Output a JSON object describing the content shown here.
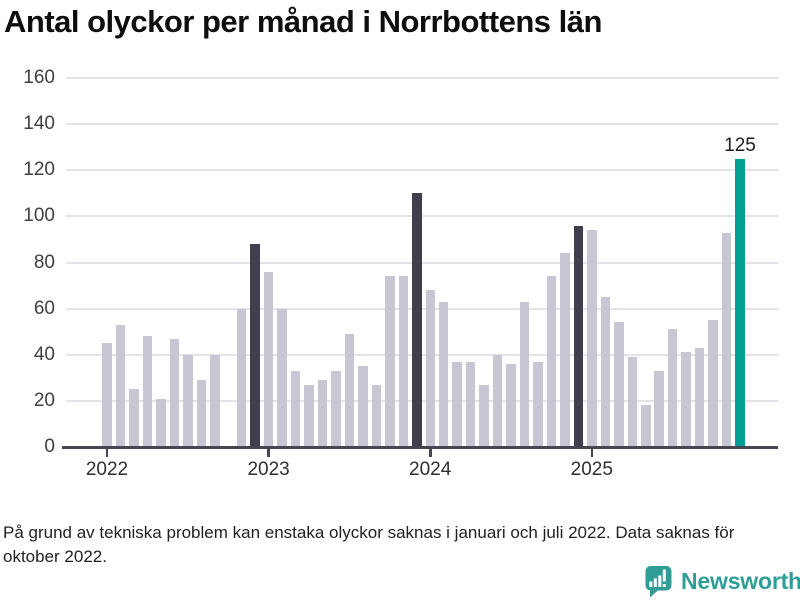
{
  "title": "Antal olyckor per månad i Norrbottens län",
  "footnote": "På grund av tekniska problem kan enstaka olyckor saknas i januari och juli 2022. Data saknas för oktober 2022.",
  "branding": {
    "logo_text": "Newsworthy"
  },
  "colors": {
    "bar_default": "#c8c6d2",
    "bar_highlight_dark": "#413f4e",
    "bar_highlight_teal": "#00a096",
    "gridline": "#e5e3e8",
    "axis": "#47454f",
    "logo_teal": "#2f9e97"
  },
  "chart_data": {
    "type": "bar",
    "title": "Antal olyckor per månad i Norrbottens län",
    "xlabel": "",
    "ylabel": "",
    "ylim": [
      0,
      160
    ],
    "yticks": [
      0,
      20,
      40,
      60,
      80,
      100,
      120,
      140,
      160
    ],
    "grid": "horizontal",
    "legend_position": "none",
    "year_labels": [
      "2022",
      "2023",
      "2024",
      "2025"
    ],
    "annotation": {
      "label": "125",
      "month": "2025-12"
    },
    "months": [
      {
        "month": "2022-01",
        "value": 45
      },
      {
        "month": "2022-02",
        "value": 53
      },
      {
        "month": "2022-03",
        "value": 25
      },
      {
        "month": "2022-04",
        "value": 48
      },
      {
        "month": "2022-05",
        "value": 21
      },
      {
        "month": "2022-06",
        "value": 47
      },
      {
        "month": "2022-07",
        "value": 40
      },
      {
        "month": "2022-08",
        "value": 29
      },
      {
        "month": "2022-09",
        "value": 40
      },
      {
        "month": "2022-10",
        "value": null
      },
      {
        "month": "2022-11",
        "value": 60
      },
      {
        "month": "2022-12",
        "value": 88,
        "highlight": "dark"
      },
      {
        "month": "2023-01",
        "value": 76
      },
      {
        "month": "2023-02",
        "value": 60
      },
      {
        "month": "2023-03",
        "value": 33
      },
      {
        "month": "2023-04",
        "value": 27
      },
      {
        "month": "2023-05",
        "value": 29
      },
      {
        "month": "2023-06",
        "value": 33
      },
      {
        "month": "2023-07",
        "value": 49
      },
      {
        "month": "2023-08",
        "value": 35
      },
      {
        "month": "2023-09",
        "value": 27
      },
      {
        "month": "2023-10",
        "value": 74
      },
      {
        "month": "2023-11",
        "value": 74
      },
      {
        "month": "2023-12",
        "value": 110,
        "highlight": "dark"
      },
      {
        "month": "2024-01",
        "value": 68
      },
      {
        "month": "2024-02",
        "value": 63
      },
      {
        "month": "2024-03",
        "value": 37
      },
      {
        "month": "2024-04",
        "value": 37
      },
      {
        "month": "2024-05",
        "value": 27
      },
      {
        "month": "2024-06",
        "value": 40
      },
      {
        "month": "2024-07",
        "value": 36
      },
      {
        "month": "2024-08",
        "value": 63
      },
      {
        "month": "2024-09",
        "value": 37
      },
      {
        "month": "2024-10",
        "value": 74
      },
      {
        "month": "2024-11",
        "value": 84
      },
      {
        "month": "2024-12",
        "value": 96,
        "highlight": "dark"
      },
      {
        "month": "2025-01",
        "value": 94
      },
      {
        "month": "2025-02",
        "value": 65
      },
      {
        "month": "2025-03",
        "value": 54
      },
      {
        "month": "2025-04",
        "value": 39
      },
      {
        "month": "2025-05",
        "value": 18
      },
      {
        "month": "2025-06",
        "value": 33
      },
      {
        "month": "2025-07",
        "value": 51
      },
      {
        "month": "2025-08",
        "value": 41
      },
      {
        "month": "2025-09",
        "value": 43
      },
      {
        "month": "2025-10",
        "value": 55
      },
      {
        "month": "2025-11",
        "value": 93
      },
      {
        "month": "2025-12",
        "value": 125,
        "highlight": "teal"
      }
    ]
  }
}
